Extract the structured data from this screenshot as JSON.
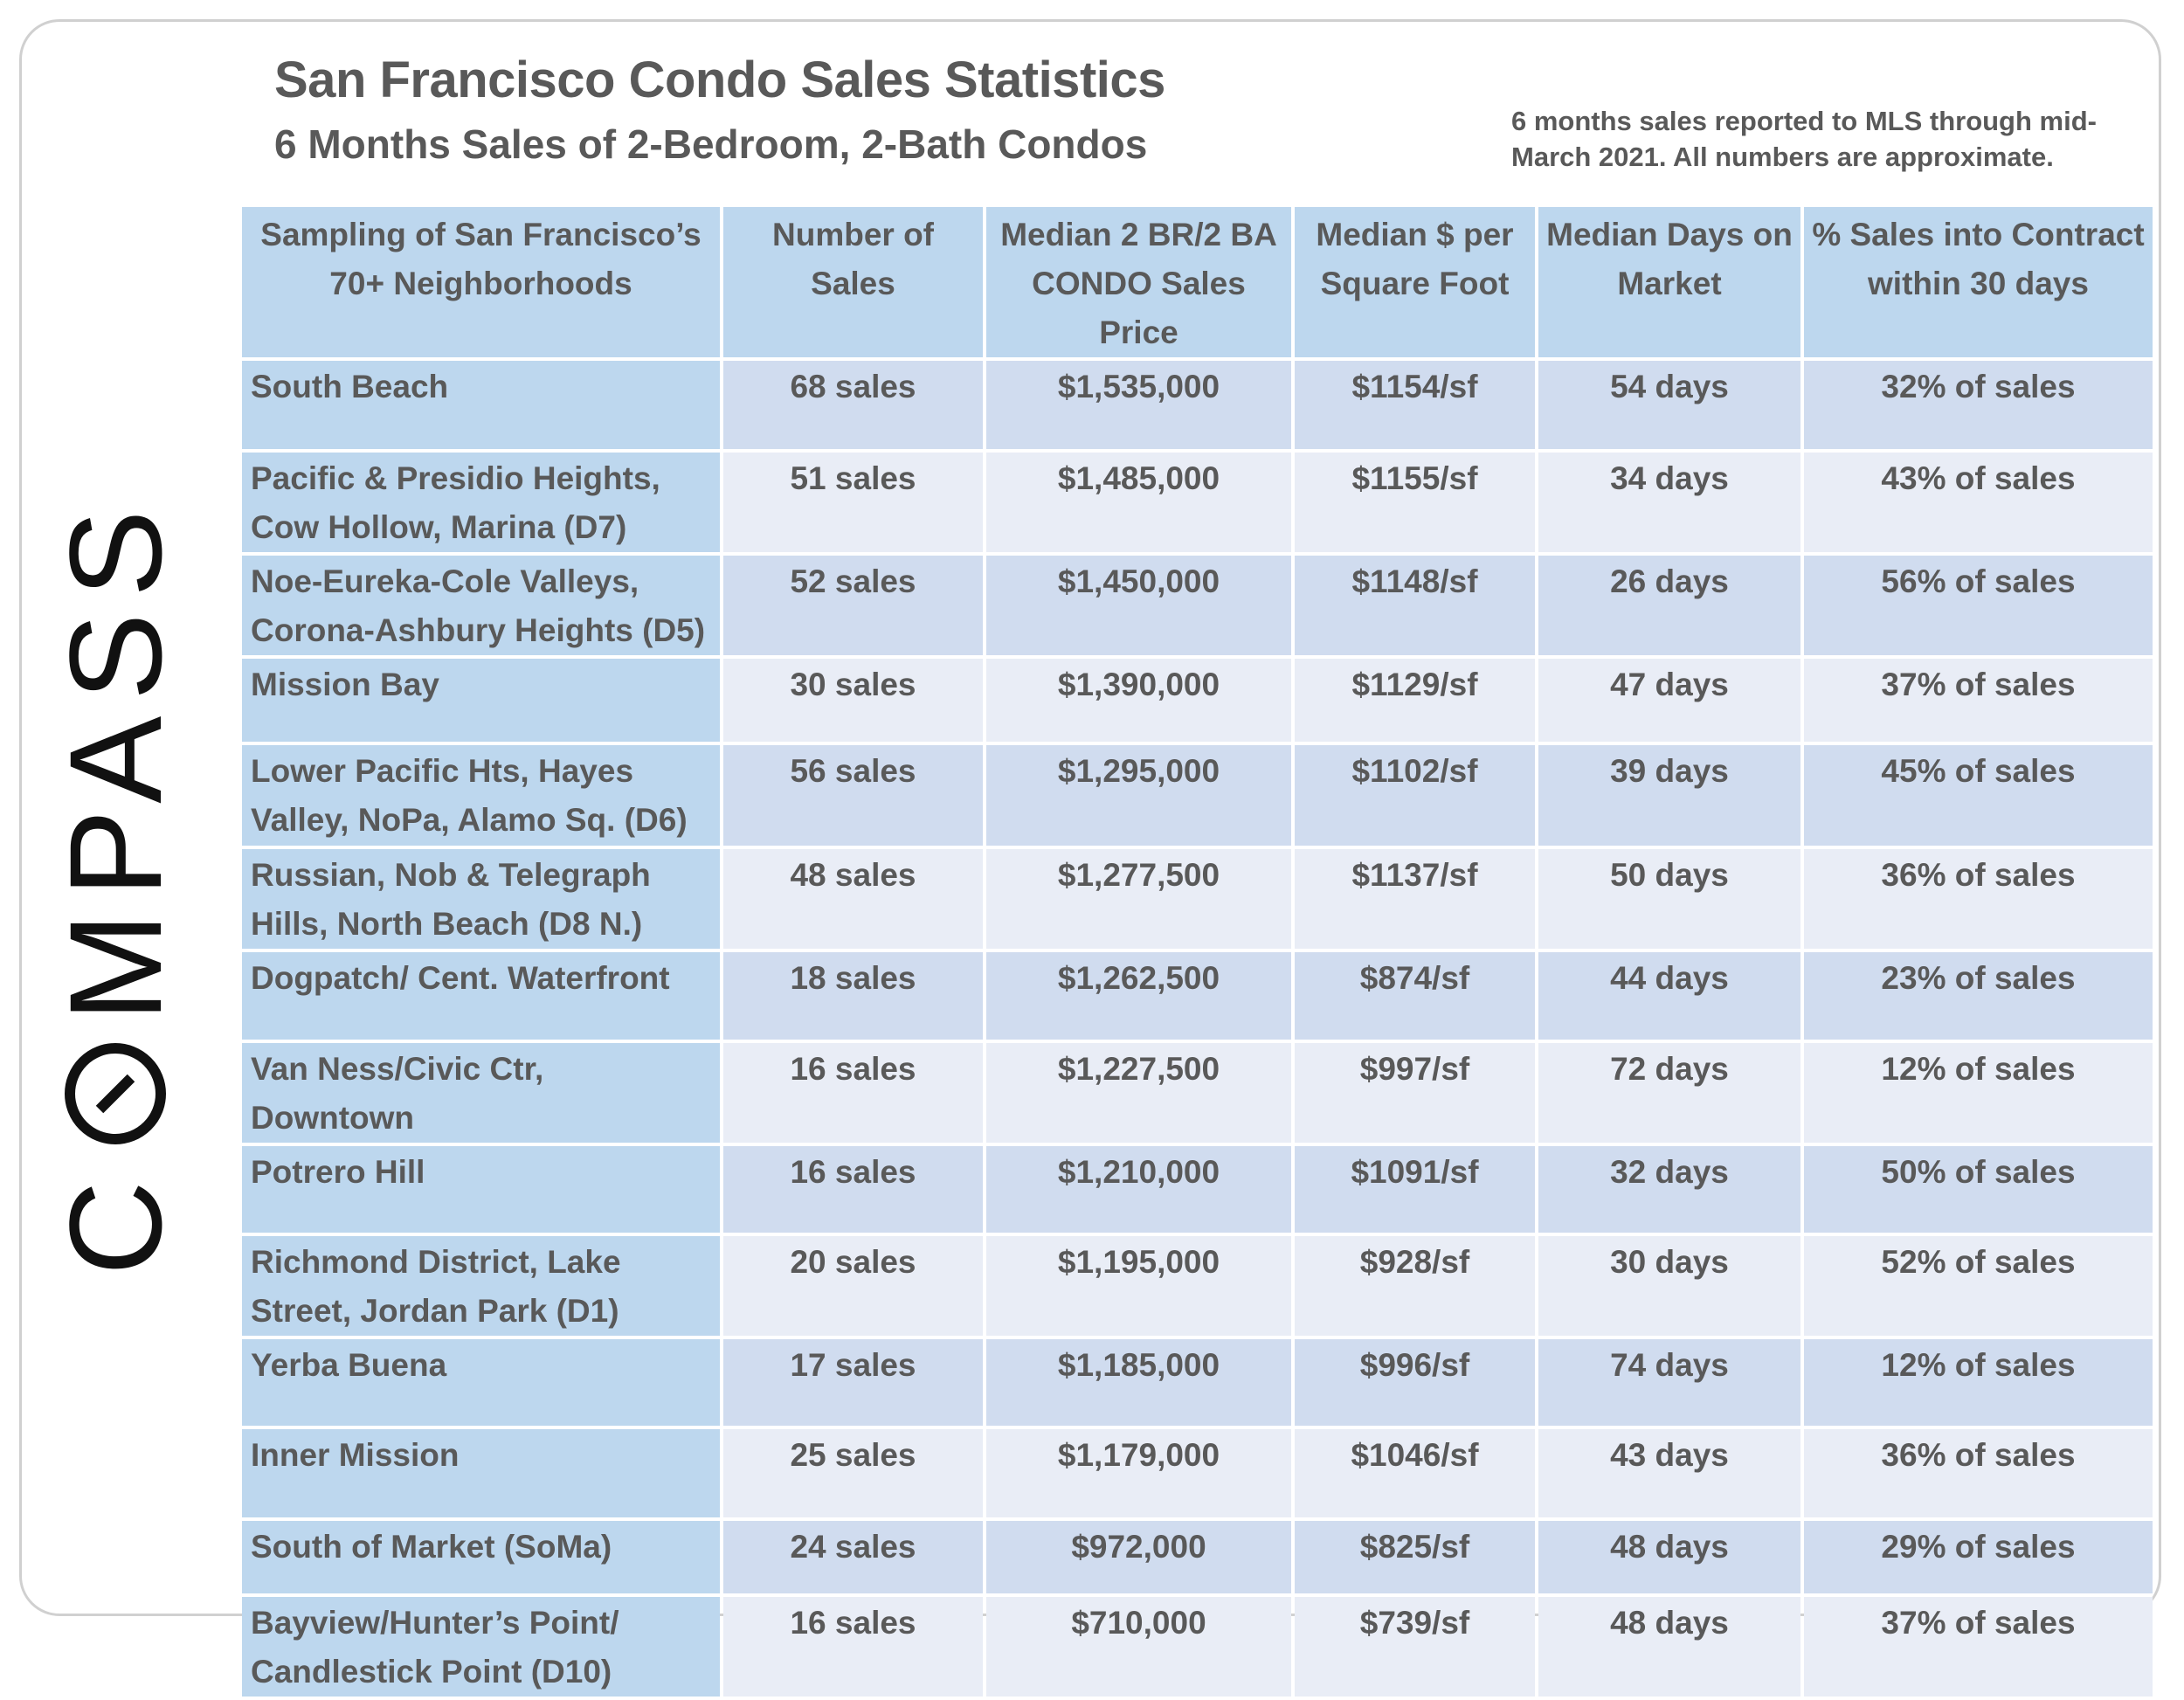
{
  "title": "San Francisco Condo Sales Statistics",
  "subtitle": "6 Months Sales of 2-Bedroom, 2-Bath Condos",
  "note": "6 months sales reported to MLS through mid-March 2021. All numbers are approximate.",
  "logo": "COMPASS",
  "colors": {
    "header": "#bdd7ee",
    "row_dark": "#d0dcef",
    "row_light": "#e9edf6",
    "text": "#595959"
  },
  "table": {
    "headers": [
      "Sampling of San Francisco’s 70+ Neighborhoods",
      "Number of Sales",
      "Median 2 BR/2 BA CONDO Sales Price",
      "Median $ per Square Foot",
      "Median Days on Market",
      "% Sales into Contract within 30 days"
    ],
    "rows": [
      [
        "South Beach",
        "68 sales",
        "$1,535,000",
        "$1154/sf",
        "54 days",
        "32% of sales"
      ],
      [
        "Pacific & Presidio Heights, Cow Hollow, Marina (D7)",
        "51 sales",
        "$1,485,000",
        "$1155/sf",
        "34 days",
        "43% of sales"
      ],
      [
        "Noe-Eureka-Cole Valleys, Corona-Ashbury Heights (D5)",
        "52 sales",
        "$1,450,000",
        "$1148/sf",
        "26 days",
        "56% of sales"
      ],
      [
        "Mission Bay",
        "30 sales",
        "$1,390,000",
        "$1129/sf",
        "47 days",
        "37% of sales"
      ],
      [
        "Lower Pacific Hts, Hayes Valley, NoPa, Alamo Sq. (D6)",
        "56 sales",
        "$1,295,000",
        "$1102/sf",
        "39 days",
        "45% of sales"
      ],
      [
        "Russian, Nob & Telegraph Hills, North Beach (D8 N.)",
        "48 sales",
        "$1,277,500",
        "$1137/sf",
        "50 days",
        "36% of sales"
      ],
      [
        "Dogpatch/ Cent. Waterfront",
        "18 sales",
        "$1,262,500",
        "$874/sf",
        "44 days",
        "23% of sales"
      ],
      [
        "Van Ness/Civic Ctr, Downtown",
        "16 sales",
        "$1,227,500",
        "$997/sf",
        "72 days",
        "12% of sales"
      ],
      [
        "Potrero Hill",
        "16 sales",
        "$1,210,000",
        "$1091/sf",
        "32 days",
        "50% of sales"
      ],
      [
        "Richmond District, Lake Street, Jordan Park (D1)",
        "20 sales",
        "$1,195,000",
        "$928/sf",
        "30 days",
        "52% of sales"
      ],
      [
        "Yerba Buena",
        "17 sales",
        "$1,185,000",
        "$996/sf",
        "74 days",
        "12% of sales"
      ],
      [
        "Inner Mission",
        "25 sales",
        "$1,179,000",
        "$1046/sf",
        "43 days",
        "36% of sales"
      ],
      [
        "South of Market (SoMa)",
        "24 sales",
        "$972,000",
        "$825/sf",
        "48 days",
        "29% of sales"
      ],
      [
        "Bayview/Hunter’s Point/ Candlestick Point (D10)",
        "16 sales",
        "$710,000",
        "$739/sf",
        "48 days",
        "37% of sales"
      ]
    ]
  }
}
